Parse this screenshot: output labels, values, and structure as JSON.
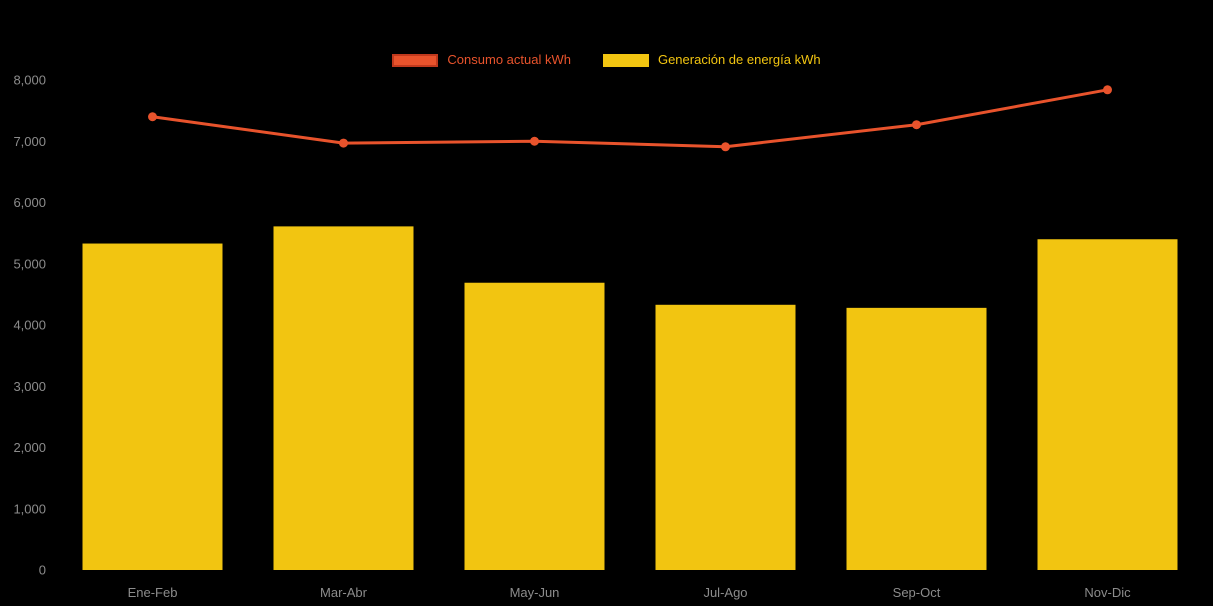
{
  "chart_data": {
    "type": "bar+line",
    "title": "",
    "categories": [
      "Ene-Feb",
      "Mar-Abr",
      "May-Jun",
      "Jul-Ago",
      "Sep-Oct",
      "Nov-Dic"
    ],
    "series": [
      {
        "name": "Consumo actual kWh",
        "type": "line",
        "color": "#E8532C",
        "swatch_border": "#C0391D",
        "values": [
          7400,
          6970,
          7000,
          6910,
          7270,
          7840
        ]
      },
      {
        "name": "Generación de energía kWh",
        "type": "bar",
        "color": "#F2C511",
        "values": [
          5330,
          5610,
          4690,
          4330,
          4280,
          5400
        ]
      }
    ],
    "xlabel": "",
    "ylabel": "",
    "ylim": [
      0,
      8000
    ],
    "yticks": [
      0,
      1000,
      2000,
      3000,
      4000,
      5000,
      6000,
      7000,
      8000
    ],
    "ytick_labels": [
      "0",
      "1,000",
      "2,000",
      "3,000",
      "4,000",
      "5,000",
      "6,000",
      "7,000",
      "8,000"
    ],
    "grid": false,
    "legend_position": "top",
    "background_color": "#000000",
    "axis_label_color": "#8C8C8C"
  }
}
